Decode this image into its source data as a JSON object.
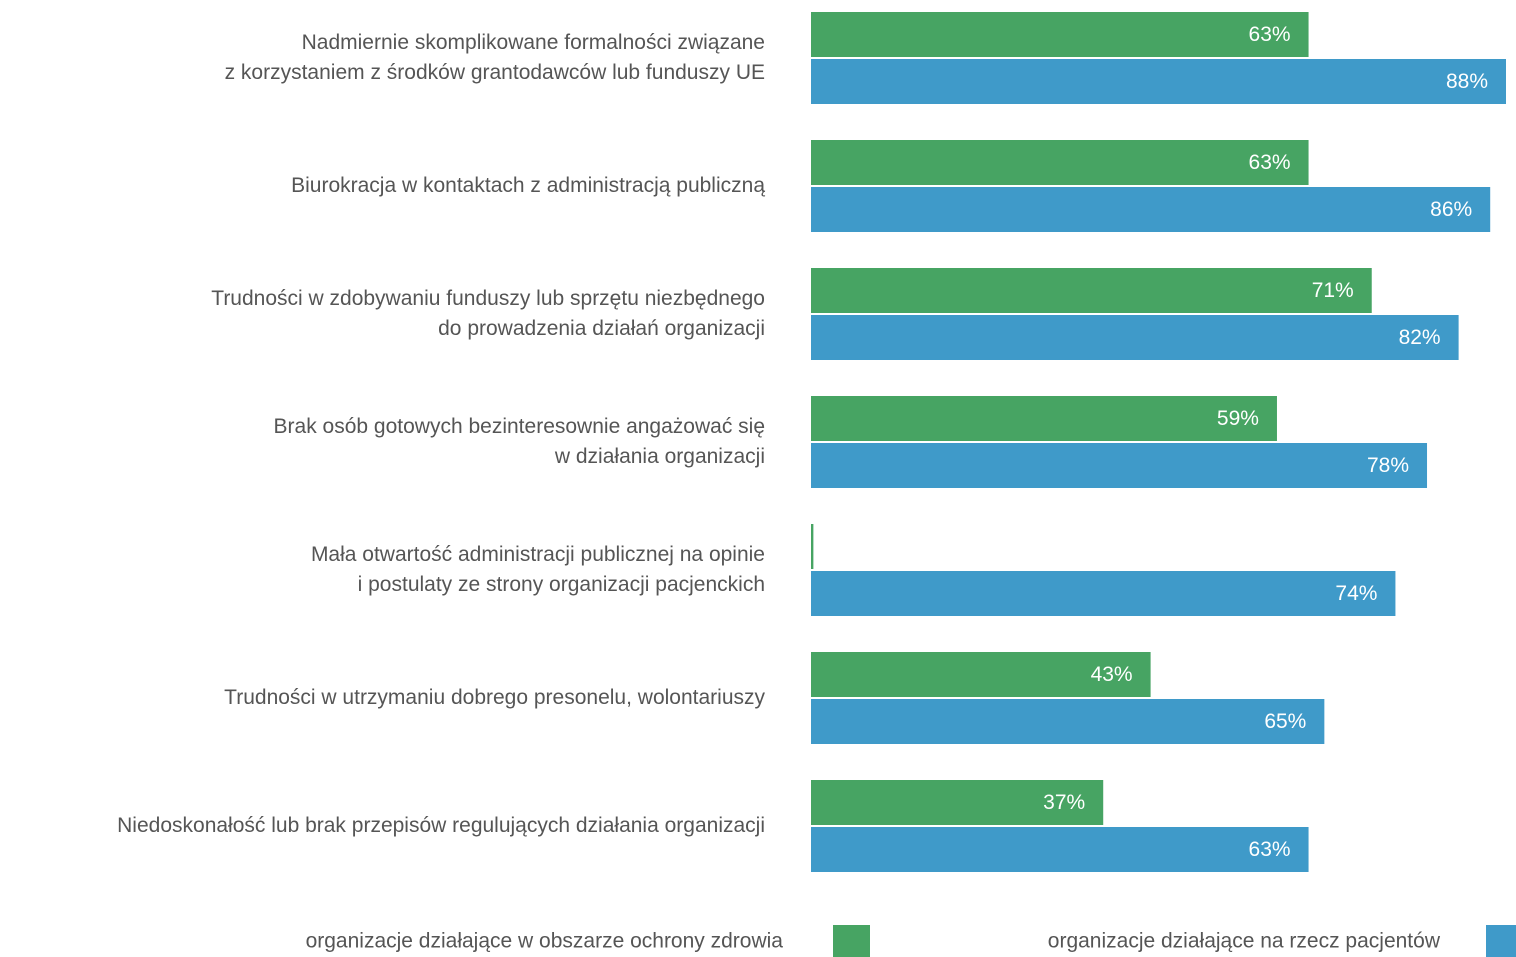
{
  "chart_data": {
    "type": "bar",
    "orientation": "horizontal",
    "categories": [
      "Nadmiernie skomplikowane formalności związane\nz korzystaniem z środków grantodawców lub funduszy UE",
      "Biurokracja w kontaktach z administracją publiczną",
      "Trudności w zdobywaniu funduszy lub sprzętu niezbędnego\ndo prowadzenia działań organizacji",
      "Brak osób gotowych bezinteresownie angażować się\nw działania organizacji",
      "Mała otwartość administracji publicznej na opinie\ni postulaty ze strony organizacji pacjenckich",
      "Trudności w utrzymaniu dobrego presonelu, wolontariuszy",
      "Niedoskonałość lub brak przepisów regulujących działania organizacji"
    ],
    "series": [
      {
        "name": "organizacje działające w obszarze ochrony zdrowia",
        "color": "#47a463",
        "values": [
          63,
          63,
          71,
          59,
          0.3,
          43,
          37
        ],
        "value_labels": [
          "63%",
          "63%",
          "71%",
          "59%",
          null,
          "43%",
          "37%"
        ]
      },
      {
        "name": "organizacje działające na rzecz pacjentów",
        "color": "#3f9ac9",
        "values": [
          88,
          86,
          82,
          78,
          74,
          65,
          63
        ],
        "value_labels": [
          "88%",
          "86%",
          "82%",
          "78%",
          "74%",
          "65%",
          "63%"
        ]
      }
    ]
  }
}
